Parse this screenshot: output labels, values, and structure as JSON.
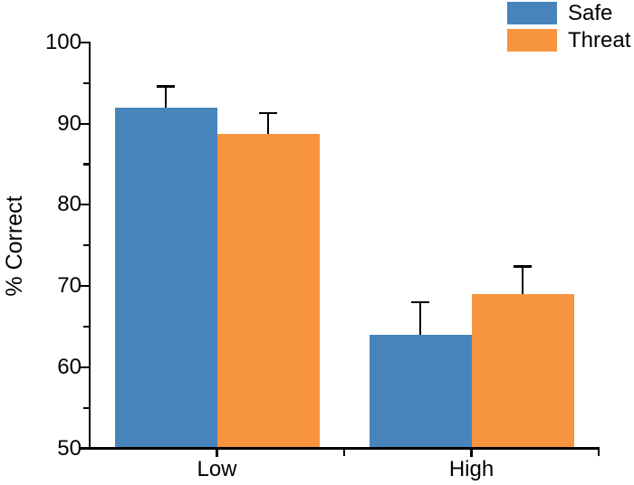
{
  "chart_data": {
    "type": "bar",
    "title": "",
    "ylabel": "% Correct",
    "xlabel": "",
    "categories": [
      "Low",
      "High"
    ],
    "series": [
      {
        "name": "Safe",
        "color": "#4884BC",
        "values": [
          92.0,
          64.0
        ],
        "errors_plus": [
          2.6,
          4.0
        ]
      },
      {
        "name": "Threat",
        "color": "#F6943F",
        "values": [
          88.7,
          69.0
        ],
        "errors_plus": [
          2.6,
          3.4
        ]
      }
    ],
    "ylim": [
      50,
      100
    ],
    "y_major_ticks": [
      50,
      60,
      70,
      80,
      90,
      100
    ],
    "y_minor_ticks": [
      55,
      65,
      75,
      85,
      95
    ],
    "grid": false,
    "legend_position": "top-right",
    "error_bars": "upper-only",
    "axis_color": "#000000",
    "background_color": "#FFFFFF"
  }
}
